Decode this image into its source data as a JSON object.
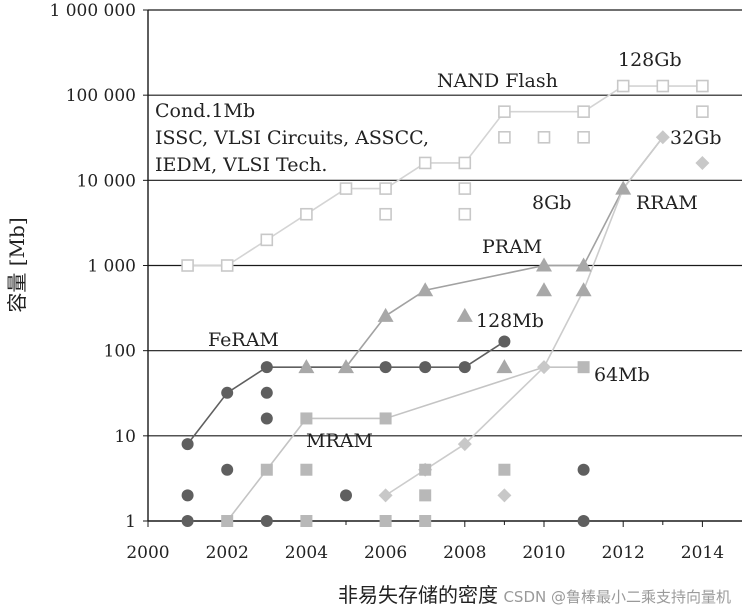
{
  "chart_data": {
    "type": "scatter",
    "xlabel": "非易失存储的密度",
    "ylabel": "容量 [Mb]",
    "xlim": [
      2000,
      2015
    ],
    "ylim": [
      1,
      1000000
    ],
    "y_scale": "log",
    "x_ticks": [
      2000,
      2002,
      2004,
      2006,
      2008,
      2010,
      2012,
      2014
    ],
    "x_tick_labels": [
      "2000",
      "2002",
      "2004",
      "2006",
      "2008",
      "2010",
      "2012",
      "2014"
    ],
    "y_ticks": [
      1,
      10,
      100,
      1000,
      10000,
      100000,
      1000000
    ],
    "y_tick_labels": [
      "1",
      "10",
      "100",
      "1 000",
      "10 000",
      "100 000",
      "1 000 000"
    ],
    "legend_text": [
      "Cond.1Mb",
      "ISSC, VLSI Circuits, ASSCC,",
      "IEDM, VLSI Tech."
    ],
    "series": [
      {
        "name": "NAND Flash",
        "marker": "open-square",
        "color": "#c8c8c8",
        "trend": [
          [
            2001,
            1000
          ],
          [
            2002,
            1000
          ],
          [
            2003,
            2000
          ],
          [
            2004,
            4000
          ],
          [
            2005,
            8000
          ],
          [
            2006,
            8000
          ],
          [
            2007,
            16000
          ],
          [
            2008,
            16000
          ],
          [
            2009,
            64000
          ],
          [
            2011,
            64000
          ],
          [
            2012,
            128000
          ],
          [
            2013,
            128000
          ],
          [
            2014,
            128000
          ]
        ],
        "points": [
          [
            2001,
            1000
          ],
          [
            2002,
            1000
          ],
          [
            2003,
            2000
          ],
          [
            2004,
            4000
          ],
          [
            2005,
            8000
          ],
          [
            2006,
            8000
          ],
          [
            2006,
            4000
          ],
          [
            2007,
            16000
          ],
          [
            2008,
            16000
          ],
          [
            2008,
            8000
          ],
          [
            2008,
            4000
          ],
          [
            2009,
            64000
          ],
          [
            2009,
            32000
          ],
          [
            2010,
            32000
          ],
          [
            2011,
            64000
          ],
          [
            2011,
            32000
          ],
          [
            2012,
            128000
          ],
          [
            2013,
            128000
          ],
          [
            2014,
            128000
          ],
          [
            2014,
            64000
          ]
        ],
        "label": "NAND Flash",
        "label2": "128Gb"
      },
      {
        "name": "PRAM",
        "marker": "triangle",
        "color": "#a8a8a8",
        "trend": [
          [
            2004,
            64
          ],
          [
            2005,
            64
          ],
          [
            2006,
            256
          ],
          [
            2007,
            512
          ],
          [
            2010,
            1000
          ],
          [
            2011,
            1000
          ],
          [
            2012,
            8000
          ],
          [
            2013,
            32000
          ]
        ],
        "points": [
          [
            2004,
            64
          ],
          [
            2005,
            64
          ],
          [
            2006,
            256
          ],
          [
            2007,
            512
          ],
          [
            2008,
            256
          ],
          [
            2009,
            64
          ],
          [
            2010,
            1000
          ],
          [
            2010,
            512
          ],
          [
            2011,
            1000
          ],
          [
            2011,
            512
          ],
          [
            2012,
            8000
          ]
        ],
        "label": "PRAM",
        "label2": "8Gb"
      },
      {
        "name": "RRAM",
        "marker": "diamond",
        "color": "#c8c8c8",
        "trend": [
          [
            2006,
            2
          ],
          [
            2007,
            4
          ],
          [
            2008,
            8
          ],
          [
            2010,
            64
          ],
          [
            2011,
            512
          ],
          [
            2012,
            8000
          ],
          [
            2013,
            32000
          ]
        ],
        "points": [
          [
            2006,
            2
          ],
          [
            2007,
            4
          ],
          [
            2008,
            8
          ],
          [
            2009,
            2
          ],
          [
            2010,
            64
          ],
          [
            2013,
            32000
          ],
          [
            2014,
            16000
          ]
        ],
        "label": "RRAM",
        "label2": "32Gb"
      },
      {
        "name": "FeRAM",
        "marker": "filled-circle",
        "color": "#5f5f5f",
        "trend": [
          [
            2001,
            8
          ],
          [
            2002,
            32
          ],
          [
            2003,
            64
          ],
          [
            2008,
            64
          ],
          [
            2009,
            128
          ]
        ],
        "points": [
          [
            2001,
            8
          ],
          [
            2001,
            2
          ],
          [
            2001,
            1
          ],
          [
            2002,
            32
          ],
          [
            2002,
            4
          ],
          [
            2003,
            64
          ],
          [
            2003,
            32
          ],
          [
            2003,
            16
          ],
          [
            2003,
            1
          ],
          [
            2005,
            2
          ],
          [
            2006,
            64
          ],
          [
            2007,
            64
          ],
          [
            2008,
            64
          ],
          [
            2009,
            128
          ],
          [
            2011,
            4
          ],
          [
            2011,
            1
          ]
        ],
        "label": "FeRAM",
        "label2": "128Mb"
      },
      {
        "name": "MRAM",
        "marker": "filled-square",
        "color": "#b8b8b8",
        "trend": [
          [
            2002,
            1
          ],
          [
            2003,
            4
          ],
          [
            2004,
            16
          ],
          [
            2006,
            16
          ],
          [
            2010,
            64
          ],
          [
            2011,
            64
          ]
        ],
        "points": [
          [
            2002,
            1
          ],
          [
            2003,
            4
          ],
          [
            2004,
            16
          ],
          [
            2004,
            4
          ],
          [
            2004,
            1
          ],
          [
            2006,
            16
          ],
          [
            2006,
            1
          ],
          [
            2007,
            4
          ],
          [
            2007,
            2
          ],
          [
            2007,
            1
          ],
          [
            2009,
            4
          ],
          [
            2011,
            64
          ]
        ],
        "label": "MRAM",
        "label2": "64Mb"
      }
    ]
  },
  "watermark": "CSDN @鲁棒最小二乘支持向量机"
}
